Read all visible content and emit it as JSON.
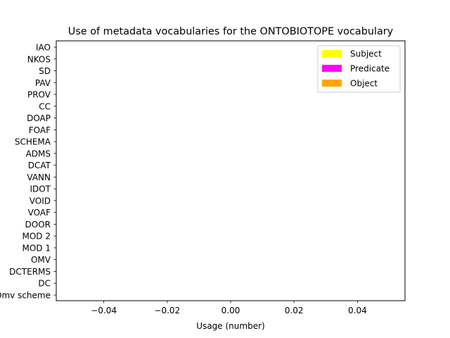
{
  "chart_data": {
    "type": "bar",
    "orientation": "horizontal",
    "title": "Use of metadata vocabularies for the ONTOBIOTOPE vocabulary",
    "xlabel": "Usage (number)",
    "ylabel": "",
    "xlim": [
      -0.055,
      0.055
    ],
    "xticks": [
      -0.04,
      -0.02,
      0.0,
      0.02,
      0.04
    ],
    "xtick_labels": [
      "−0.04",
      "−0.02",
      "0.00",
      "0.02",
      "0.04"
    ],
    "categories": [
      "IAO",
      "NKOS",
      "SD",
      "PAV",
      "PROV",
      "CC",
      "DOAP",
      "FOAF",
      "SCHEMA",
      "ADMS",
      "DCAT",
      "VANN",
      "IDOT",
      "VOID",
      "VOAF",
      "DOOR",
      "MOD 2",
      "MOD 1",
      "OMV",
      "DCTERMS",
      "DC",
      "Omv scheme"
    ],
    "series": [
      {
        "name": "Subject",
        "color": "#ffff00",
        "values": [
          0,
          0,
          0,
          0,
          0,
          0,
          0,
          0,
          0,
          0,
          0,
          0,
          0,
          0,
          0,
          0,
          0,
          0,
          0,
          0,
          0,
          0
        ]
      },
      {
        "name": "Predicate",
        "color": "#ff00ff",
        "values": [
          0,
          0,
          0,
          0,
          0,
          0,
          0,
          0,
          0,
          0,
          0,
          0,
          0,
          0,
          0,
          0,
          0,
          0,
          0,
          0,
          0,
          0
        ]
      },
      {
        "name": "Object",
        "color": "#ffa500",
        "values": [
          0,
          0,
          0,
          0,
          0,
          0,
          0,
          0,
          0,
          0,
          0,
          0,
          0,
          0,
          0,
          0,
          0,
          0,
          0,
          0,
          0,
          0
        ]
      }
    ],
    "legend_position": "top-right",
    "grid": false
  }
}
